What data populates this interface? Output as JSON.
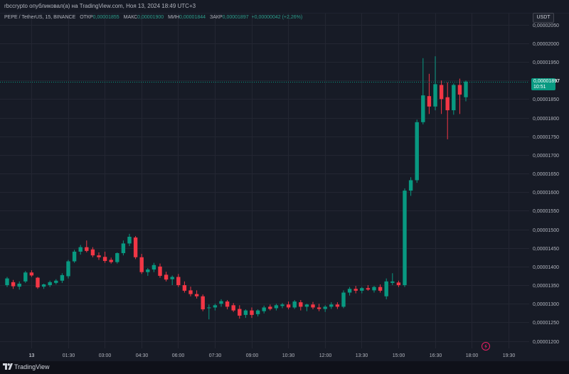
{
  "header": {
    "published_text": "rbccrypto опубликовал(а) на TradingView.com, Ноя 13, 2024 18:49 UTC+3"
  },
  "legend": {
    "symbol": "PEPE / TetherUS, 15, BINANCE",
    "open_label": "ОТКР",
    "open_value": "0,00001855",
    "high_label": "МАКС",
    "high_value": "0,00001900",
    "low_label": "МИН",
    "low_value": "0,00001844",
    "close_label": "ЗАКР",
    "close_value": "0,00001897",
    "change": "+0,00000042 (+2,26%)"
  },
  "currency_button": "USDT",
  "price_tag": {
    "price": "0,00001897",
    "countdown": "10:51"
  },
  "footer": {
    "brand": "TradingView"
  },
  "colors": {
    "up": "#089981",
    "down": "#f23645",
    "background": "#171b26",
    "grid": "#232632",
    "text": "#b2b5be"
  },
  "icons": {
    "lightning": "lightning-icon",
    "logo": "tradingview-logo-icon"
  },
  "chart_data": {
    "type": "candlestick",
    "interval": "15",
    "y_axis": {
      "ticks": [
        "0,00001200",
        "0,00001250",
        "0,00001300",
        "0,00001350",
        "0,00001400",
        "0,00001450",
        "0,00001500",
        "0,00001550",
        "0,00001600",
        "0,00001650",
        "0,00001700",
        "0,00001750",
        "0,00001800",
        "0,00001850",
        "0,00001900",
        "0,00001950",
        "0,00002000",
        "0,00002050"
      ],
      "range": [
        1.18e-05,
        2.08e-05
      ]
    },
    "x_axis": {
      "ticks": [
        "13",
        "01:30",
        "03:00",
        "04:30",
        "06:00",
        "07:30",
        "09:00",
        "10:30",
        "12:00",
        "13:30",
        "15:00",
        "16:30",
        "18:00",
        "19:30"
      ]
    },
    "grid": true,
    "last_price_line": 1.897e-05,
    "candles": [
      {
        "o": 1.35,
        "h": 1.372,
        "l": 1.345,
        "c": 1.368
      },
      {
        "o": 1.358,
        "h": 1.364,
        "l": 1.34,
        "c": 1.347
      },
      {
        "o": 1.346,
        "h": 1.36,
        "l": 1.338,
        "c": 1.354
      },
      {
        "o": 1.36,
        "h": 1.388,
        "l": 1.356,
        "c": 1.384
      },
      {
        "o": 1.384,
        "h": 1.39,
        "l": 1.372,
        "c": 1.376
      },
      {
        "o": 1.37,
        "h": 1.372,
        "l": 1.34,
        "c": 1.344
      },
      {
        "o": 1.346,
        "h": 1.354,
        "l": 1.34,
        "c": 1.352
      },
      {
        "o": 1.35,
        "h": 1.362,
        "l": 1.345,
        "c": 1.358
      },
      {
        "o": 1.356,
        "h": 1.366,
        "l": 1.352,
        "c": 1.362
      },
      {
        "o": 1.362,
        "h": 1.382,
        "l": 1.356,
        "c": 1.377
      },
      {
        "o": 1.374,
        "h": 1.418,
        "l": 1.368,
        "c": 1.414
      },
      {
        "o": 1.414,
        "h": 1.445,
        "l": 1.41,
        "c": 1.44
      },
      {
        "o": 1.44,
        "h": 1.458,
        "l": 1.432,
        "c": 1.452
      },
      {
        "o": 1.452,
        "h": 1.47,
        "l": 1.438,
        "c": 1.442
      },
      {
        "o": 1.446,
        "h": 1.452,
        "l": 1.425,
        "c": 1.43
      },
      {
        "o": 1.43,
        "h": 1.438,
        "l": 1.418,
        "c": 1.425
      },
      {
        "o": 1.426,
        "h": 1.44,
        "l": 1.41,
        "c": 1.415
      },
      {
        "o": 1.418,
        "h": 1.424,
        "l": 1.408,
        "c": 1.412
      },
      {
        "o": 1.412,
        "h": 1.438,
        "l": 1.408,
        "c": 1.436
      },
      {
        "o": 1.436,
        "h": 1.47,
        "l": 1.43,
        "c": 1.462
      },
      {
        "o": 1.462,
        "h": 1.488,
        "l": 1.455,
        "c": 1.48
      },
      {
        "o": 1.478,
        "h": 1.482,
        "l": 1.42,
        "c": 1.425
      },
      {
        "o": 1.425,
        "h": 1.434,
        "l": 1.38,
        "c": 1.385
      },
      {
        "o": 1.385,
        "h": 1.396,
        "l": 1.375,
        "c": 1.392
      },
      {
        "o": 1.392,
        "h": 1.41,
        "l": 1.385,
        "c": 1.404
      },
      {
        "o": 1.4,
        "h": 1.408,
        "l": 1.37,
        "c": 1.375
      },
      {
        "o": 1.378,
        "h": 1.386,
        "l": 1.36,
        "c": 1.365
      },
      {
        "o": 1.366,
        "h": 1.376,
        "l": 1.35,
        "c": 1.372
      },
      {
        "o": 1.372,
        "h": 1.38,
        "l": 1.345,
        "c": 1.35
      },
      {
        "o": 1.35,
        "h": 1.36,
        "l": 1.33,
        "c": 1.335
      },
      {
        "o": 1.336,
        "h": 1.346,
        "l": 1.32,
        "c": 1.326
      },
      {
        "o": 1.326,
        "h": 1.336,
        "l": 1.314,
        "c": 1.32
      },
      {
        "o": 1.32,
        "h": 1.325,
        "l": 1.28,
        "c": 1.285
      },
      {
        "o": 1.288,
        "h": 1.298,
        "l": 1.258,
        "c": 1.29
      },
      {
        "o": 1.29,
        "h": 1.3,
        "l": 1.282,
        "c": 1.296
      },
      {
        "o": 1.3,
        "h": 1.312,
        "l": 1.292,
        "c": 1.307
      },
      {
        "o": 1.306,
        "h": 1.31,
        "l": 1.285,
        "c": 1.292
      },
      {
        "o": 1.296,
        "h": 1.302,
        "l": 1.278,
        "c": 1.282
      },
      {
        "o": 1.286,
        "h": 1.296,
        "l": 1.26,
        "c": 1.268
      },
      {
        "o": 1.27,
        "h": 1.285,
        "l": 1.262,
        "c": 1.282
      },
      {
        "o": 1.282,
        "h": 1.29,
        "l": 1.262,
        "c": 1.27
      },
      {
        "o": 1.272,
        "h": 1.285,
        "l": 1.266,
        "c": 1.282
      },
      {
        "o": 1.28,
        "h": 1.295,
        "l": 1.274,
        "c": 1.29
      },
      {
        "o": 1.292,
        "h": 1.298,
        "l": 1.282,
        "c": 1.286
      },
      {
        "o": 1.288,
        "h": 1.3,
        "l": 1.282,
        "c": 1.296
      },
      {
        "o": 1.294,
        "h": 1.302,
        "l": 1.288,
        "c": 1.298
      },
      {
        "o": 1.298,
        "h": 1.306,
        "l": 1.285,
        "c": 1.29
      },
      {
        "o": 1.29,
        "h": 1.31,
        "l": 1.286,
        "c": 1.306
      },
      {
        "o": 1.304,
        "h": 1.31,
        "l": 1.282,
        "c": 1.292
      },
      {
        "o": 1.292,
        "h": 1.3,
        "l": 1.28,
        "c": 1.298
      },
      {
        "o": 1.298,
        "h": 1.305,
        "l": 1.285,
        "c": 1.29
      },
      {
        "o": 1.29,
        "h": 1.3,
        "l": 1.28,
        "c": 1.286
      },
      {
        "o": 1.286,
        "h": 1.296,
        "l": 1.278,
        "c": 1.292
      },
      {
        "o": 1.292,
        "h": 1.304,
        "l": 1.286,
        "c": 1.298
      },
      {
        "o": 1.298,
        "h": 1.304,
        "l": 1.286,
        "c": 1.292
      },
      {
        "o": 1.292,
        "h": 1.336,
        "l": 1.288,
        "c": 1.33
      },
      {
        "o": 1.33,
        "h": 1.345,
        "l": 1.322,
        "c": 1.34
      },
      {
        "o": 1.34,
        "h": 1.348,
        "l": 1.328,
        "c": 1.335
      },
      {
        "o": 1.335,
        "h": 1.345,
        "l": 1.328,
        "c": 1.342
      },
      {
        "o": 1.342,
        "h": 1.35,
        "l": 1.335,
        "c": 1.338
      },
      {
        "o": 1.336,
        "h": 1.348,
        "l": 1.33,
        "c": 1.345
      },
      {
        "o": 1.345,
        "h": 1.352,
        "l": 1.33,
        "c": 1.335
      },
      {
        "o": 1.32,
        "h": 1.368,
        "l": 1.312,
        "c": 1.36
      },
      {
        "o": 1.356,
        "h": 1.382,
        "l": 1.35,
        "c": 1.36
      },
      {
        "o": 1.357,
        "h": 1.362,
        "l": 1.345,
        "c": 1.35
      },
      {
        "o": 1.35,
        "h": 1.61,
        "l": 1.345,
        "c": 1.604
      },
      {
        "o": 1.604,
        "h": 1.64,
        "l": 1.59,
        "c": 1.632
      },
      {
        "o": 1.632,
        "h": 1.795,
        "l": 1.625,
        "c": 1.788
      },
      {
        "o": 1.788,
        "h": 1.96,
        "l": 1.782,
        "c": 1.86
      },
      {
        "o": 1.858,
        "h": 1.918,
        "l": 1.81,
        "c": 1.83
      },
      {
        "o": 1.83,
        "h": 1.965,
        "l": 1.82,
        "c": 1.89
      },
      {
        "o": 1.888,
        "h": 1.9,
        "l": 1.81,
        "c": 1.85
      },
      {
        "o": 1.855,
        "h": 1.895,
        "l": 1.742,
        "c": 1.82
      },
      {
        "o": 1.82,
        "h": 1.892,
        "l": 1.808,
        "c": 1.888
      },
      {
        "o": 1.888,
        "h": 1.905,
        "l": 1.81,
        "c": 1.862
      },
      {
        "o": 1.855,
        "h": 1.9,
        "l": 1.844,
        "c": 1.897
      }
    ]
  }
}
